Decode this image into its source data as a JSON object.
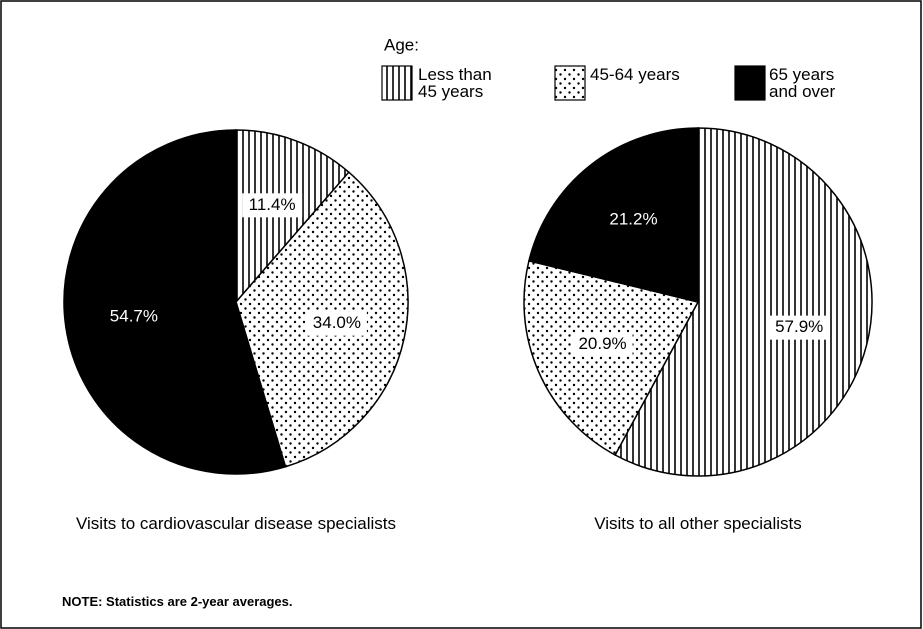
{
  "legend_title": "Age:",
  "note": "NOTE: Statistics are 2-year averages.",
  "chart_data": [
    {
      "type": "pie",
      "title": "Visits to cardiovascular disease specialists",
      "categories": [
        "Less than 45 years",
        "45-64 years",
        "65 years and over"
      ],
      "values": [
        11.4,
        34.0,
        54.7
      ],
      "value_labels": [
        "11.4%",
        "34.0%",
        "54.7%"
      ],
      "patterns": [
        "vertical-lines",
        "dots",
        "solid"
      ],
      "color": "#000000"
    },
    {
      "type": "pie",
      "title": "Visits to all other specialists",
      "categories": [
        "Less than 45 years",
        "45-64 years",
        "65 years and over"
      ],
      "values": [
        57.9,
        20.9,
        21.2
      ],
      "value_labels": [
        "57.9%",
        "20.9%",
        "21.2%"
      ],
      "patterns": [
        "vertical-lines",
        "dots",
        "solid"
      ],
      "color": "#000000"
    }
  ]
}
